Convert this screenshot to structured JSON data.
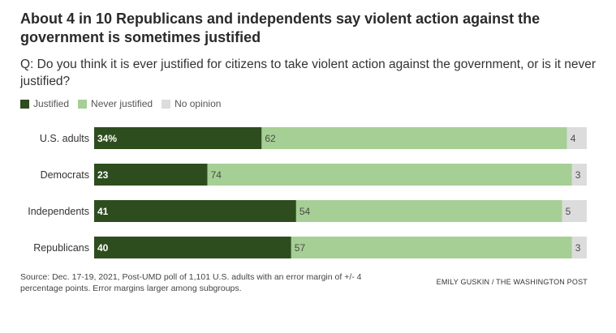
{
  "header": {
    "title": "About 4 in 10 Republicans and independents say violent action against the government is sometimes justified",
    "question": "Q: Do you think it is ever justified for citizens to take violent action against the government, or is it never justified?"
  },
  "legend": [
    {
      "label": "Justified",
      "color": "#2e4d1e"
    },
    {
      "label": "Never justified",
      "color": "#a6cf95"
    },
    {
      "label": "No opinion",
      "color": "#dcdcdc"
    }
  ],
  "chart_data": {
    "type": "bar",
    "orientation": "horizontal",
    "stacked": true,
    "categories": [
      "U.S. adults",
      "Democrats",
      "Independents",
      "Republicans"
    ],
    "series": [
      {
        "name": "Justified",
        "values": [
          34,
          23,
          41,
          40
        ],
        "labels": [
          "34%",
          "23",
          "41",
          "40"
        ],
        "color": "#2e4d1e"
      },
      {
        "name": "Never justified",
        "values": [
          62,
          74,
          54,
          57
        ],
        "labels": [
          "62",
          "74",
          "54",
          "57"
        ],
        "color": "#a6cf95"
      },
      {
        "name": "No opinion",
        "values": [
          4,
          3,
          5,
          3
        ],
        "labels": [
          "4",
          "3",
          "5",
          "3"
        ],
        "color": "#dcdcdc"
      }
    ],
    "xlim": [
      0,
      100
    ],
    "grid": false
  },
  "footer": {
    "source": "Source: Dec. 17-19, 2021, Post-UMD poll of 1,101 U.S. adults with an error margin of +/- 4 percentage points. Error margins larger among subgroups.",
    "credit": "EMILY GUSKIN / THE WASHINGTON POST"
  }
}
